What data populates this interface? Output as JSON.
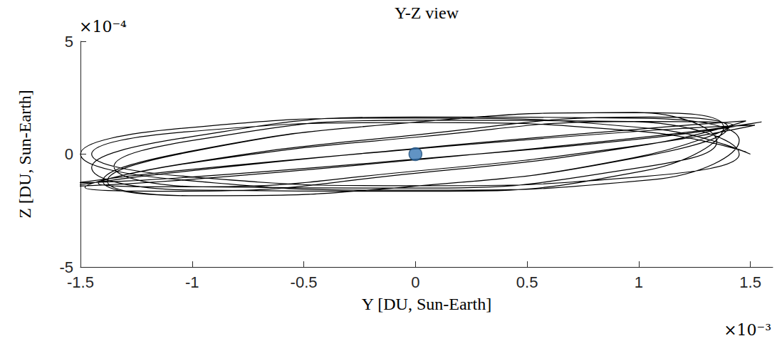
{
  "chart_data": {
    "type": "line",
    "title": "Y-Z view",
    "x_label": "Y [DU, Sun-Earth]",
    "y_label": "Z [DU, Sun-Earth]",
    "annotations": [
      {
        "text": "×10⁻⁴",
        "axis": "y"
      },
      {
        "text": "×10⁻³",
        "axis": "x"
      }
    ],
    "xlim": [
      -1.5,
      1.6
    ],
    "ylim": [
      -5,
      5
    ],
    "xticks": [
      -1.5,
      -1,
      -0.5,
      0,
      0.5,
      1,
      1.5
    ],
    "yticks": [
      -5,
      0,
      5
    ],
    "grid": false,
    "series": [
      {
        "type": "line",
        "color": "#000000",
        "line_style": "solid",
        "x": [
          1.5,
          1.061,
          0,
          -1.061,
          -1.5,
          -1.061,
          0,
          1.061,
          1.45,
          1.025,
          0,
          -1.025,
          -1.45,
          -1.025,
          0,
          1.025,
          1.38,
          0.976,
          0,
          -0.976,
          -1.38,
          -0.976,
          0,
          0.976,
          1.42,
          1.004,
          0,
          -1.004,
          -1.42,
          -1.004,
          0,
          1.004,
          1.52,
          1.075,
          0,
          -1.075,
          -1.52,
          -1.075,
          0,
          1.075,
          1.55,
          1.096,
          0,
          -1.096,
          -1.55,
          -1.096,
          0,
          1.096,
          1.48,
          1.047,
          0,
          -1.047,
          -1.48,
          -1.047,
          0,
          1.047,
          1.4,
          0.99,
          0,
          -0.99,
          -1.4,
          -0.99,
          0,
          0.99,
          1.35,
          0.955,
          0,
          -0.955,
          -1.35,
          -0.955,
          0,
          0.955,
          1.45,
          1.025,
          0,
          -1.025,
          -1.45,
          -1.025,
          0,
          1.025,
          1.48
        ],
        "values": [
          0,
          1.131,
          1.6,
          1.131,
          0,
          -1.131,
          -1.6,
          -1.131,
          0.599,
          1.586,
          1.645,
          0.74,
          -0.599,
          -1.586,
          -1.645,
          -0.74,
          1.189,
          1.843,
          1.417,
          0.161,
          -1.189,
          -1.843,
          -1.417,
          -0.161,
          1.299,
          1.449,
          0.75,
          -0.388,
          -1.299,
          -1.449,
          -0.75,
          0.388,
          1.28,
          1.065,
          0.226,
          -0.746,
          -1.28,
          -1.065,
          -0.226,
          0.746,
          1.428,
          0.832,
          -0.252,
          -1.188,
          -1.428,
          -0.832,
          0.252,
          1.188,
          1.472,
          0.44,
          -0.85,
          -1.642,
          -1.472,
          -0.44,
          0.85,
          1.642,
          1.189,
          -0.161,
          -1.417,
          -1.843,
          -1.189,
          0.161,
          1.417,
          1.843,
          0.547,
          -0.677,
          -1.504,
          -1.45,
          -0.547,
          0.677,
          1.504,
          1.45,
          0,
          -0.99,
          -1.4,
          -0.99,
          0,
          0.99,
          1.4,
          0.99,
          0.1
        ]
      },
      {
        "type": "scatter",
        "color": "#3a78b5",
        "marker": "circle",
        "x": [
          0
        ],
        "values": [
          0
        ]
      }
    ]
  }
}
